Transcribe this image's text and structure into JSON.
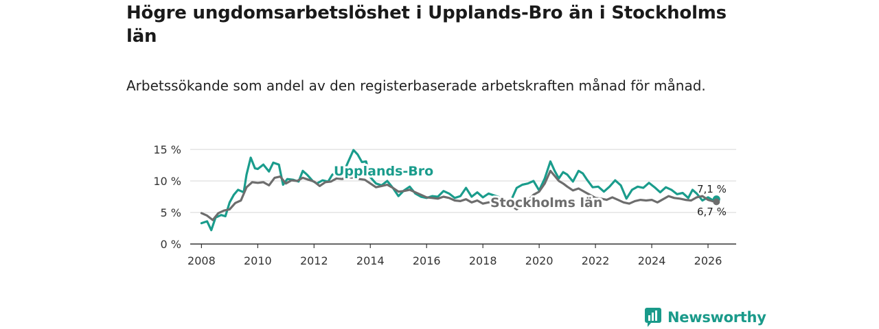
{
  "title": "Högre ungdomsarbetslöshet i Upplands-Bro än i Stockholms län",
  "subtitle": "Arbetssökande som andel av den registerbaserade arbetskraften månad för månad.",
  "brand": {
    "name": "Newsworthy",
    "logo_icon": "bar-chart-speech-bubble-icon"
  },
  "colors": {
    "upplands": "#1a9c8c",
    "stockholm": "#6d6d6d",
    "grid": "#d6d6d6",
    "axis": "#333333",
    "brand": "#1a9a8a"
  },
  "chart_data": {
    "type": "line",
    "title": "Högre ungdomsarbetslöshet i Upplands-Bro än i Stockholms län",
    "subtitle": "Arbetssökande som andel av den registerbaserade arbetskraften månad för månad.",
    "xlabel": "",
    "ylabel": "",
    "xlim": [
      2007.6,
      2027.0
    ],
    "ylim": [
      0,
      15
    ],
    "grid": true,
    "x_ticks": [
      2008,
      2010,
      2012,
      2014,
      2016,
      2018,
      2020,
      2022,
      2024,
      2026
    ],
    "x_tick_labels": [
      "2008",
      "2010",
      "2012",
      "2014",
      "2016",
      "2018",
      "2020",
      "2022",
      "2024",
      "2026"
    ],
    "y_ticks": [
      0,
      5,
      10,
      15
    ],
    "y_tick_labels": [
      "0 %",
      "5 %",
      "10 %",
      "15 %"
    ],
    "series": [
      {
        "name": "Upplands-Bro",
        "label": "Upplands-Bro",
        "color": "#1a9c8c",
        "last_value_label": "7,1 %",
        "x": [
          2008.0,
          2008.2,
          2008.35,
          2008.5,
          2008.7,
          2008.85,
          2009.0,
          2009.15,
          2009.3,
          2009.5,
          2009.6,
          2009.75,
          2009.9,
          2010.0,
          2010.2,
          2010.4,
          2010.55,
          2010.75,
          2010.9,
          2011.05,
          2011.25,
          2011.45,
          2011.6,
          2011.75,
          2011.95,
          2012.1,
          2012.3,
          2012.5,
          2012.65,
          2012.8,
          2013.0,
          2013.2,
          2013.4,
          2013.55,
          2013.7,
          2013.85,
          2014.0,
          2014.2,
          2014.4,
          2014.6,
          2014.8,
          2015.0,
          2015.2,
          2015.4,
          2015.6,
          2015.8,
          2016.0,
          2016.2,
          2016.4,
          2016.6,
          2016.8,
          2017.0,
          2017.2,
          2017.4,
          2017.6,
          2017.8,
          2018.0,
          2018.2,
          2018.4,
          2018.6,
          2018.8,
          2019.0,
          2019.2,
          2019.4,
          2019.6,
          2019.8,
          2020.0,
          2020.2,
          2020.4,
          2020.55,
          2020.7,
          2020.85,
          2021.0,
          2021.2,
          2021.4,
          2021.55,
          2021.7,
          2021.9,
          2022.1,
          2022.3,
          2022.5,
          2022.7,
          2022.9,
          2023.1,
          2023.3,
          2023.5,
          2023.7,
          2023.9,
          2024.1,
          2024.3,
          2024.5,
          2024.7,
          2024.9,
          2025.1,
          2025.3,
          2025.45,
          2025.6,
          2025.8,
          2026.0,
          2026.15,
          2026.3
        ],
        "values": [
          3.3,
          3.6,
          2.2,
          4.2,
          4.6,
          4.4,
          6.6,
          7.8,
          8.6,
          8.2,
          11.0,
          13.7,
          12.0,
          11.9,
          12.6,
          11.5,
          12.9,
          12.6,
          9.4,
          10.3,
          10.2,
          9.9,
          11.6,
          11.0,
          10.0,
          9.6,
          10.1,
          9.9,
          11.0,
          11.3,
          10.8,
          12.9,
          14.9,
          14.2,
          13.0,
          13.1,
          10.6,
          9.6,
          9.3,
          10.0,
          8.9,
          7.6,
          8.5,
          9.1,
          8.0,
          7.5,
          7.3,
          7.6,
          7.5,
          8.4,
          8.0,
          7.3,
          7.6,
          8.9,
          7.5,
          8.2,
          7.4,
          8.0,
          7.7,
          7.4,
          6.5,
          6.9,
          8.9,
          9.4,
          9.6,
          10.0,
          8.5,
          10.4,
          13.1,
          11.6,
          10.4,
          11.4,
          11.0,
          9.9,
          11.6,
          11.2,
          10.2,
          9.0,
          9.1,
          8.3,
          9.1,
          10.1,
          9.3,
          7.2,
          8.6,
          9.1,
          8.9,
          9.7,
          9.0,
          8.2,
          9.0,
          8.6,
          7.9,
          8.1,
          7.3,
          8.6,
          8.0,
          6.9,
          7.4,
          7.0,
          7.1
        ]
      },
      {
        "name": "Stockholms län",
        "label": "Stockholms län",
        "color": "#6d6d6d",
        "last_value_label": "6,7 %",
        "x": [
          2008.0,
          2008.2,
          2008.4,
          2008.6,
          2008.8,
          2009.0,
          2009.2,
          2009.4,
          2009.6,
          2009.8,
          2010.0,
          2010.2,
          2010.4,
          2010.6,
          2010.8,
          2011.0,
          2011.2,
          2011.4,
          2011.6,
          2011.8,
          2012.0,
          2012.2,
          2012.4,
          2012.6,
          2012.8,
          2013.0,
          2013.2,
          2013.4,
          2013.6,
          2013.8,
          2014.0,
          2014.2,
          2014.4,
          2014.6,
          2014.8,
          2015.0,
          2015.2,
          2015.4,
          2015.6,
          2015.8,
          2016.0,
          2016.2,
          2016.4,
          2016.6,
          2016.8,
          2017.0,
          2017.2,
          2017.4,
          2017.6,
          2017.8,
          2018.0,
          2018.2,
          2018.4,
          2018.6,
          2018.8,
          2019.0,
          2019.2,
          2019.4,
          2019.6,
          2019.8,
          2020.0,
          2020.2,
          2020.4,
          2020.55,
          2020.7,
          2020.85,
          2021.0,
          2021.2,
          2021.4,
          2021.6,
          2021.8,
          2022.0,
          2022.2,
          2022.4,
          2022.6,
          2022.8,
          2023.0,
          2023.2,
          2023.4,
          2023.6,
          2023.8,
          2024.0,
          2024.2,
          2024.4,
          2024.6,
          2024.8,
          2025.0,
          2025.2,
          2025.4,
          2025.6,
          2025.8,
          2026.0,
          2026.15,
          2026.3
        ],
        "values": [
          4.9,
          4.5,
          3.8,
          4.9,
          5.3,
          5.5,
          6.5,
          6.9,
          9.0,
          9.8,
          9.7,
          9.8,
          9.3,
          10.5,
          10.7,
          9.6,
          10.1,
          10.0,
          10.5,
          10.2,
          9.9,
          9.2,
          9.8,
          9.9,
          10.4,
          10.3,
          10.6,
          10.5,
          10.3,
          10.2,
          9.6,
          9.0,
          9.2,
          9.4,
          8.9,
          8.3,
          8.4,
          8.6,
          8.2,
          7.8,
          7.4,
          7.3,
          7.2,
          7.5,
          7.3,
          6.9,
          6.8,
          7.1,
          6.6,
          6.9,
          6.4,
          6.6,
          6.8,
          6.2,
          6.4,
          6.1,
          5.5,
          6.2,
          6.9,
          7.8,
          8.3,
          9.6,
          11.6,
          10.8,
          10.0,
          9.6,
          9.1,
          8.5,
          8.8,
          8.3,
          7.8,
          7.3,
          7.2,
          7.0,
          7.4,
          7.0,
          6.6,
          6.4,
          6.8,
          7.0,
          6.9,
          7.0,
          6.6,
          7.1,
          7.6,
          7.3,
          7.2,
          7.0,
          6.9,
          7.4,
          7.6,
          7.0,
          6.8,
          6.7
        ]
      }
    ]
  }
}
